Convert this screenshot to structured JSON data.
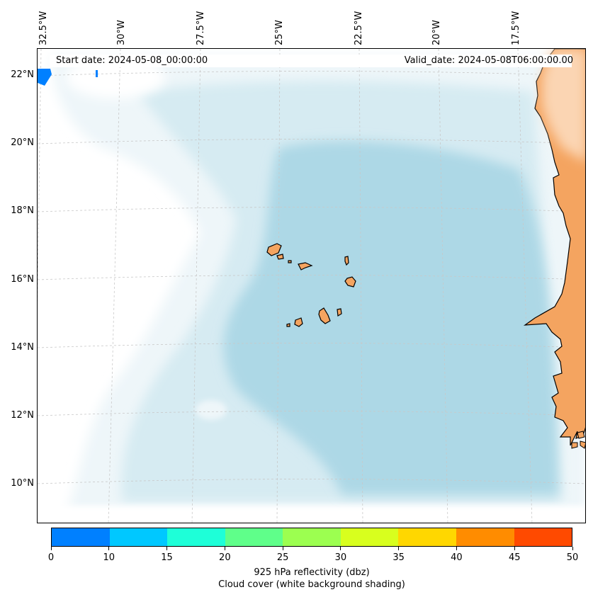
{
  "header": {
    "start_date": "Start date: 2024-05-08_00:00:00",
    "valid_date": "Valid_date: 2024-05-08T06:00:00.00"
  },
  "axes": {
    "lon_labels": [
      "32.5°W",
      "30°W",
      "27.5°W",
      "25°W",
      "22.5°W",
      "20°W",
      "17.5°W"
    ],
    "lat_labels": [
      "22°N",
      "20°N",
      "18°N",
      "16°N",
      "14°N",
      "12°N",
      "10°N"
    ]
  },
  "colorbar": {
    "ticks": [
      "0",
      "10",
      "15",
      "20",
      "25",
      "30",
      "35",
      "40",
      "45",
      "50"
    ],
    "colors": [
      "#0080ff",
      "#00c8ff",
      "#1effd8",
      "#5fff8a",
      "#9cff50",
      "#d8ff1e",
      "#ffd700",
      "#ff8c00",
      "#ff4a00"
    ],
    "label_line1": "925 hPa reflectivity (dbz)",
    "label_line2": "Cloud cover (white background shading)"
  },
  "map_colors": {
    "cloud_light": "#eef6f9",
    "cloud_mid": "#d6ebf2",
    "cloud_dense": "#add8e6",
    "land": "#f4a460",
    "land_light": "#fbd5b3",
    "coastline": "#000000",
    "gridline": "#c8c8c8"
  }
}
